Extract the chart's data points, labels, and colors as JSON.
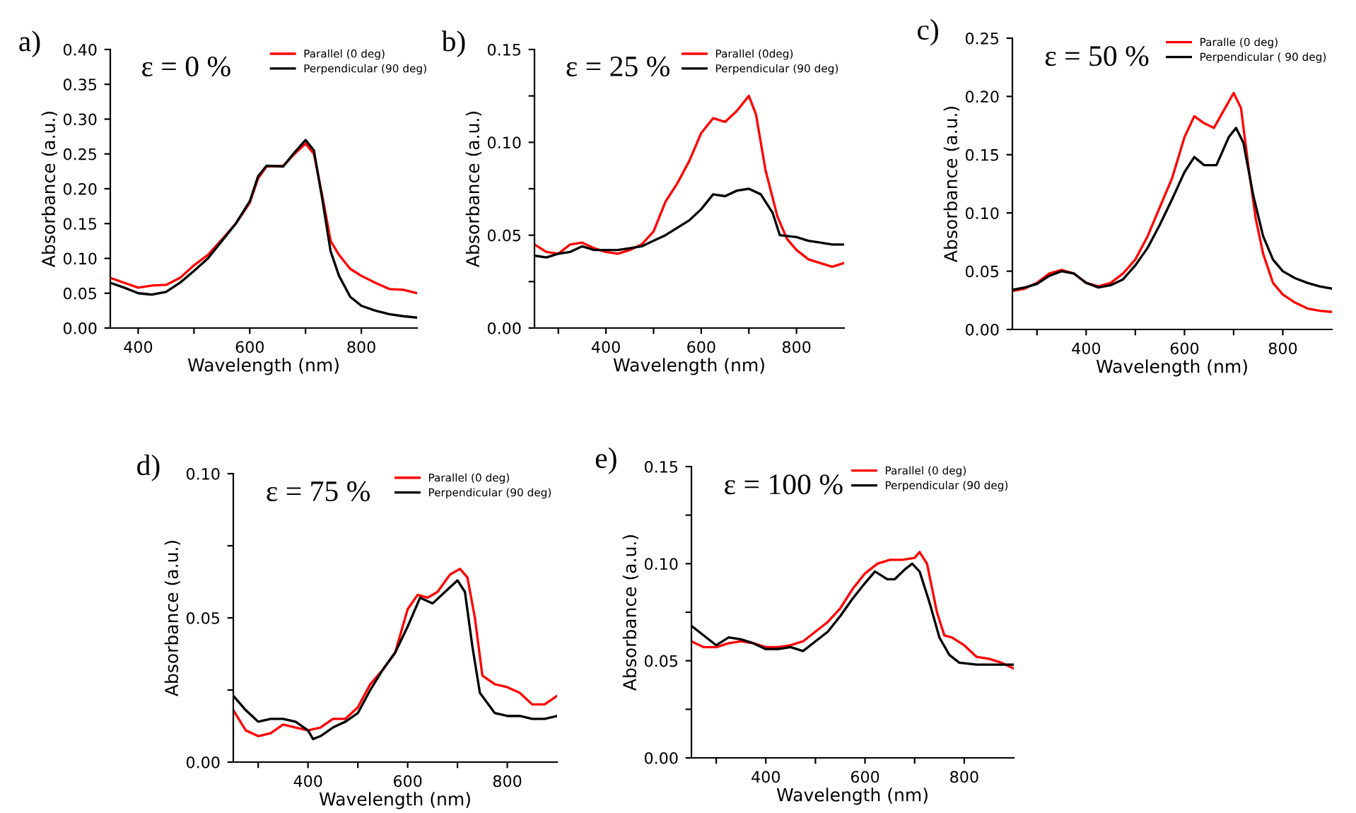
{
  "chart_data": [
    {
      "type": "line",
      "title": "a)",
      "annotations": [
        "ε = 0 %"
      ],
      "xlabel": "Wavelength (nm)",
      "ylabel": "Absorbance (a.u.)",
      "xlim": [
        350,
        900
      ],
      "ylim": [
        0,
        0.4
      ],
      "xticks": [
        400,
        {
          "value": 500,
          "label": null
        },
        600,
        {
          "value": 700,
          "label": null
        },
        800
      ],
      "yticks": [
        {
          "value": 0,
          "label": "0.00"
        },
        {
          "value": 0.05,
          "label": "0.05"
        },
        {
          "value": 0.1,
          "label": "0.10"
        },
        {
          "value": 0.15,
          "label": "0.15"
        },
        {
          "value": 0.2,
          "label": "0.20"
        },
        {
          "value": 0.25,
          "label": "0.25"
        },
        {
          "value": 0.3,
          "label": "0.30"
        },
        {
          "value": 0.35,
          "label": "0.35"
        },
        {
          "value": 0.4,
          "label": "0.40"
        }
      ],
      "legend": "top right",
      "grid": false,
      "series": [
        {
          "name": "Parallel (0 deg)",
          "color": "#ff0000",
          "x": [
            350,
            375,
            400,
            425,
            450,
            475,
            500,
            525,
            550,
            575,
            600,
            615,
            630,
            660,
            680,
            700,
            715,
            730,
            745,
            760,
            780,
            800,
            825,
            850,
            875,
            900
          ],
          "values": [
            0.072,
            0.065,
            0.058,
            0.061,
            0.062,
            0.072,
            0.09,
            0.105,
            0.127,
            0.15,
            0.18,
            0.215,
            0.232,
            0.233,
            0.25,
            0.265,
            0.25,
            0.19,
            0.125,
            0.105,
            0.085,
            0.075,
            0.065,
            0.056,
            0.055,
            0.05
          ]
        },
        {
          "name": "Perpendicular (90 deg)",
          "color": "#000000",
          "x": [
            350,
            375,
            400,
            425,
            450,
            475,
            500,
            525,
            550,
            575,
            600,
            615,
            630,
            660,
            680,
            700,
            715,
            730,
            745,
            760,
            780,
            800,
            825,
            850,
            875,
            900
          ],
          "values": [
            0.065,
            0.058,
            0.05,
            0.048,
            0.052,
            0.065,
            0.082,
            0.1,
            0.125,
            0.15,
            0.182,
            0.218,
            0.233,
            0.232,
            0.252,
            0.27,
            0.255,
            0.185,
            0.11,
            0.075,
            0.045,
            0.032,
            0.025,
            0.02,
            0.017,
            0.015
          ]
        }
      ]
    },
    {
      "type": "line",
      "title": "b)",
      "annotations": [
        "ε = 25 %"
      ],
      "xlabel": "Wavelength (nm)",
      "ylabel": "Absorbance (a.u.)",
      "xlim": [
        250,
        900
      ],
      "ylim": [
        0,
        0.15
      ],
      "xticks": [
        {
          "value": 300,
          "label": null
        },
        400,
        {
          "value": 500,
          "label": null
        },
        600,
        {
          "value": 700,
          "label": null
        },
        800
      ],
      "yticks": [
        {
          "value": 0,
          "label": "0.00"
        },
        {
          "value": 0.025,
          "label": null
        },
        {
          "value": 0.05,
          "label": "0.05"
        },
        {
          "value": 0.075,
          "label": null
        },
        {
          "value": 0.1,
          "label": "0.10"
        },
        {
          "value": 0.125,
          "label": null
        },
        {
          "value": 0.15,
          "label": "0.15"
        }
      ],
      "legend": "top right",
      "grid": false,
      "series": [
        {
          "name": "Parallel (0deg)",
          "color": "#ff0000",
          "x": [
            250,
            275,
            300,
            325,
            350,
            375,
            400,
            425,
            450,
            475,
            500,
            525,
            550,
            575,
            600,
            625,
            650,
            675,
            700,
            715,
            735,
            760,
            780,
            800,
            825,
            850,
            875,
            900
          ],
          "values": [
            0.045,
            0.041,
            0.04,
            0.045,
            0.046,
            0.043,
            0.041,
            0.04,
            0.042,
            0.045,
            0.052,
            0.068,
            0.078,
            0.09,
            0.105,
            0.113,
            0.111,
            0.117,
            0.125,
            0.115,
            0.085,
            0.06,
            0.048,
            0.042,
            0.037,
            0.035,
            0.033,
            0.035
          ]
        },
        {
          "name": "Perpendicular (90 deg)",
          "color": "#000000",
          "x": [
            250,
            275,
            300,
            325,
            350,
            375,
            400,
            425,
            450,
            475,
            500,
            525,
            550,
            575,
            600,
            625,
            650,
            675,
            700,
            725,
            750,
            765,
            800,
            825,
            850,
            875,
            900
          ],
          "values": [
            0.039,
            0.038,
            0.04,
            0.041,
            0.044,
            0.042,
            0.042,
            0.042,
            0.043,
            0.044,
            0.047,
            0.05,
            0.054,
            0.058,
            0.064,
            0.072,
            0.071,
            0.074,
            0.075,
            0.072,
            0.062,
            0.05,
            0.049,
            0.047,
            0.046,
            0.045,
            0.045
          ]
        }
      ]
    },
    {
      "type": "line",
      "title": "c)",
      "annotations": [
        "ε = 50 %"
      ],
      "xlabel": "Wavelength (nm)",
      "ylabel": "Absorbance (a.u.)",
      "xlim": [
        250,
        900
      ],
      "ylim": [
        0,
        0.25
      ],
      "xticks": [
        {
          "value": 300,
          "label": null
        },
        400,
        {
          "value": 500,
          "label": null
        },
        600,
        {
          "value": 700,
          "label": null
        },
        800
      ],
      "yticks": [
        {
          "value": 0,
          "label": "0.00"
        },
        {
          "value": 0.05,
          "label": "0.05"
        },
        {
          "value": 0.1,
          "label": "0.10"
        },
        {
          "value": 0.15,
          "label": "0.15"
        },
        {
          "value": 0.2,
          "label": "0.20"
        },
        {
          "value": 0.25,
          "label": "0.25"
        }
      ],
      "legend": "top right",
      "grid": false,
      "series": [
        {
          "name": "Paralle (0 deg)",
          "color": "#ff0000",
          "x": [
            250,
            275,
            300,
            325,
            350,
            375,
            400,
            425,
            450,
            475,
            500,
            525,
            550,
            575,
            600,
            620,
            640,
            660,
            680,
            700,
            715,
            730,
            745,
            760,
            780,
            800,
            825,
            850,
            875,
            900
          ],
          "values": [
            0.033,
            0.035,
            0.04,
            0.048,
            0.051,
            0.048,
            0.04,
            0.037,
            0.04,
            0.048,
            0.06,
            0.08,
            0.105,
            0.13,
            0.165,
            0.183,
            0.177,
            0.173,
            0.188,
            0.203,
            0.19,
            0.14,
            0.095,
            0.065,
            0.04,
            0.03,
            0.023,
            0.018,
            0.016,
            0.015
          ]
        },
        {
          "name": "Perpendicular ( 90 deg)",
          "color": "#000000",
          "x": [
            250,
            275,
            300,
            325,
            350,
            375,
            400,
            425,
            450,
            475,
            500,
            525,
            550,
            575,
            600,
            620,
            640,
            665,
            690,
            705,
            720,
            740,
            760,
            780,
            800,
            825,
            850,
            875,
            900
          ],
          "values": [
            0.034,
            0.036,
            0.039,
            0.046,
            0.05,
            0.048,
            0.04,
            0.036,
            0.038,
            0.043,
            0.055,
            0.07,
            0.09,
            0.112,
            0.135,
            0.148,
            0.141,
            0.141,
            0.165,
            0.173,
            0.16,
            0.115,
            0.08,
            0.06,
            0.05,
            0.044,
            0.04,
            0.037,
            0.035
          ]
        }
      ]
    },
    {
      "type": "line",
      "title": "d)",
      "annotations": [
        "ε = 75 %"
      ],
      "xlabel": "Wavelength (nm)",
      "ylabel": "Absorbance (a.u.)",
      "xlim": [
        250,
        900
      ],
      "ylim": [
        0,
        0.1
      ],
      "xticks": [
        {
          "value": 300,
          "label": null
        },
        400,
        {
          "value": 500,
          "label": null
        },
        600,
        {
          "value": 700,
          "label": null
        },
        800
      ],
      "yticks": [
        {
          "value": 0,
          "label": "0.00"
        },
        {
          "value": 0.025,
          "label": null
        },
        {
          "value": 0.05,
          "label": "0.05"
        },
        {
          "value": 0.075,
          "label": null
        },
        {
          "value": 0.1,
          "label": "0.10"
        }
      ],
      "legend": "top right",
      "grid": false,
      "series": [
        {
          "name": "Parallel (0 deg)",
          "color": "#ff0000",
          "x": [
            250,
            275,
            300,
            325,
            350,
            375,
            400,
            425,
            450,
            475,
            500,
            525,
            550,
            575,
            600,
            620,
            640,
            660,
            685,
            705,
            720,
            735,
            750,
            775,
            800,
            825,
            850,
            875,
            900
          ],
          "values": [
            0.018,
            0.011,
            0.009,
            0.01,
            0.013,
            0.012,
            0.011,
            0.012,
            0.015,
            0.015,
            0.019,
            0.027,
            0.032,
            0.038,
            0.053,
            0.058,
            0.057,
            0.059,
            0.065,
            0.067,
            0.064,
            0.05,
            0.03,
            0.027,
            0.026,
            0.024,
            0.02,
            0.02,
            0.023
          ]
        },
        {
          "name": "Perpendicular (90 deg)",
          "color": "#000000",
          "x": [
            250,
            275,
            300,
            325,
            350,
            375,
            400,
            410,
            425,
            450,
            475,
            500,
            525,
            550,
            575,
            600,
            625,
            650,
            675,
            700,
            715,
            730,
            745,
            775,
            800,
            825,
            850,
            875,
            900
          ],
          "values": [
            0.023,
            0.018,
            0.014,
            0.015,
            0.015,
            0.014,
            0.011,
            0.008,
            0.009,
            0.012,
            0.014,
            0.017,
            0.025,
            0.032,
            0.038,
            0.047,
            0.057,
            0.055,
            0.059,
            0.063,
            0.059,
            0.04,
            0.024,
            0.017,
            0.016,
            0.016,
            0.015,
            0.015,
            0.016
          ]
        }
      ]
    },
    {
      "type": "line",
      "title": "e)",
      "annotations": [
        "ε = 100 %"
      ],
      "xlabel": "Wavelength (nm)",
      "ylabel": "Absorbance (a.u.)",
      "xlim": [
        250,
        900
      ],
      "ylim": [
        0,
        0.15
      ],
      "xticks": [
        {
          "value": 300,
          "label": null
        },
        400,
        {
          "value": 500,
          "label": null
        },
        600,
        {
          "value": 700,
          "label": null
        },
        800
      ],
      "yticks": [
        {
          "value": 0,
          "label": "0.00"
        },
        {
          "value": 0.025,
          "label": null
        },
        {
          "value": 0.05,
          "label": "0.05"
        },
        {
          "value": 0.075,
          "label": null
        },
        {
          "value": 0.1,
          "label": "0.10"
        },
        {
          "value": 0.125,
          "label": null
        },
        {
          "value": 0.15,
          "label": "0.15"
        }
      ],
      "legend": "top right",
      "grid": false,
      "series": [
        {
          "name": "Parallel (0 deg)",
          "color": "#ff0000",
          "x": [
            250,
            275,
            300,
            325,
            350,
            375,
            400,
            425,
            450,
            475,
            500,
            525,
            550,
            575,
            600,
            625,
            650,
            675,
            700,
            710,
            725,
            745,
            760,
            775,
            800,
            825,
            850,
            875,
            900
          ],
          "values": [
            0.06,
            0.057,
            0.057,
            0.059,
            0.06,
            0.059,
            0.057,
            0.057,
            0.058,
            0.06,
            0.065,
            0.07,
            0.077,
            0.087,
            0.095,
            0.1,
            0.102,
            0.102,
            0.103,
            0.106,
            0.1,
            0.075,
            0.063,
            0.062,
            0.058,
            0.052,
            0.051,
            0.049,
            0.046
          ]
        },
        {
          "name": "Perpendicular (90 deg)",
          "color": "#000000",
          "x": [
            250,
            275,
            300,
            325,
            350,
            375,
            400,
            425,
            450,
            475,
            500,
            525,
            550,
            575,
            600,
            620,
            645,
            660,
            680,
            695,
            710,
            730,
            750,
            770,
            790,
            825,
            850,
            875,
            900
          ],
          "values": [
            0.068,
            0.063,
            0.058,
            0.062,
            0.061,
            0.059,
            0.056,
            0.056,
            0.057,
            0.055,
            0.06,
            0.065,
            0.073,
            0.082,
            0.09,
            0.096,
            0.092,
            0.092,
            0.097,
            0.1,
            0.096,
            0.08,
            0.062,
            0.053,
            0.049,
            0.048,
            0.048,
            0.048,
            0.048
          ]
        }
      ]
    }
  ]
}
